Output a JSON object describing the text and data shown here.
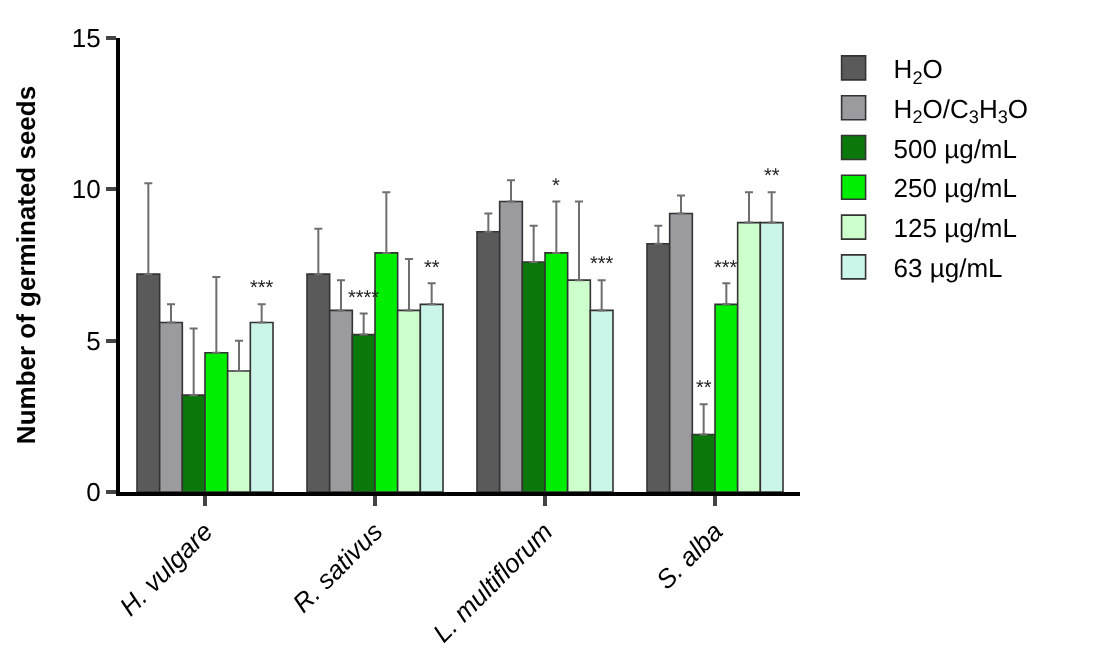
{
  "chart_data": {
    "type": "bar",
    "ylabel": "Number of germinated seeds",
    "categories": [
      "H. vulgare",
      "R. sativus",
      "L. multiflorum",
      "S. alba"
    ],
    "ylim": [
      0,
      15
    ],
    "yticks": [
      0,
      5,
      10,
      15
    ],
    "legend": "top right",
    "series": [
      {
        "name": "H$_{2}$O",
        "color": "#5a5a5a",
        "values": [
          7.2,
          7.2,
          8.6,
          8.2
        ],
        "errors": [
          [
            7.2,
            10.2
          ],
          [
            7.2,
            8.7
          ],
          [
            8.6,
            9.2
          ],
          [
            8.2,
            8.8
          ]
        ]
      },
      {
        "name": "H$_{2}$O/C$_{3}$H$_{3}$O",
        "color": "#9b9b9f",
        "values": [
          5.6,
          6.0,
          9.6,
          9.2
        ],
        "errors": [
          [
            5.6,
            6.2
          ],
          [
            6.0,
            7.0
          ],
          [
            9.6,
            10.3
          ],
          [
            9.2,
            9.8
          ]
        ]
      },
      {
        "name": "500 µg/mL",
        "color": "#0a780a",
        "values": [
          3.2,
          5.2,
          7.6,
          1.9
        ],
        "errors": [
          [
            3.2,
            5.4
          ],
          [
            5.2,
            5.9
          ],
          [
            7.6,
            8.8
          ],
          [
            1.9,
            2.9
          ]
        ],
        "value_labels": [
          null,
          "****",
          null,
          "**"
        ]
      },
      {
        "name": "250 µg/mL",
        "color": "#00ee00",
        "values": [
          4.6,
          7.9,
          7.9,
          6.2
        ],
        "errors": [
          [
            4.6,
            7.1
          ],
          [
            7.9,
            9.9
          ],
          [
            7.9,
            9.6
          ],
          [
            6.2,
            6.9
          ]
        ],
        "value_labels": [
          null,
          null,
          "*",
          "***"
        ]
      },
      {
        "name": "125 µg/mL",
        "color": "#ccffcc",
        "values": [
          4.0,
          6.0,
          7.0,
          8.9
        ],
        "errors": [
          [
            4.0,
            5.0
          ],
          [
            6.0,
            7.7
          ],
          [
            7.0,
            9.6
          ],
          [
            8.9,
            9.9
          ]
        ]
      },
      {
        "name": "63 µg/mL",
        "color": "#ccf5ea",
        "values": [
          5.6,
          6.2,
          6.0,
          8.9
        ],
        "errors": [
          [
            5.6,
            6.2
          ],
          [
            6.2,
            6.9
          ],
          [
            6.0,
            7.0
          ],
          [
            8.9,
            9.9
          ]
        ],
        "value_labels": [
          "***",
          "**",
          "***",
          "**"
        ]
      }
    ]
  }
}
